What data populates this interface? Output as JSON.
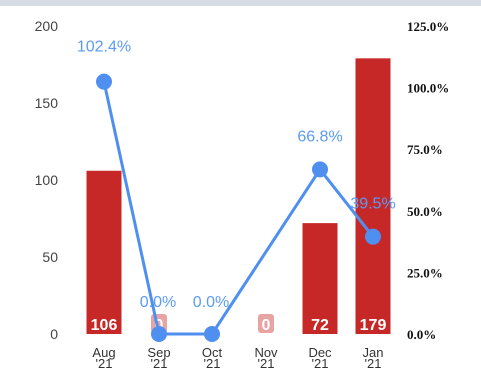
{
  "chart_data": {
    "type": "bar",
    "categories": [
      "Aug\n'21",
      "Sep\n'21",
      "Oct\n'21",
      "Nov\n'21",
      "Dec\n'21",
      "Jan\n'21"
    ],
    "series": [
      {
        "type": "bar",
        "axis": "left",
        "values": [
          106,
          0,
          0,
          0,
          72,
          179
        ],
        "data_labels": [
          "106",
          "0",
          "",
          "0",
          "72",
          "179"
        ]
      },
      {
        "type": "line",
        "axis": "right",
        "values": [
          102.4,
          0.0,
          0.0,
          null,
          66.8,
          39.5
        ],
        "data_labels": [
          "102.4%",
          "0.0%",
          "0.0%",
          "",
          "66.8%",
          "39.5%"
        ]
      }
    ],
    "y_left": {
      "range": [
        0,
        200
      ],
      "ticks": [
        0,
        50,
        100,
        150,
        200
      ],
      "tick_labels": [
        "0",
        "50",
        "100",
        "150",
        "200"
      ]
    },
    "y_right": {
      "range": [
        0,
        125
      ],
      "ticks": [
        0,
        25,
        50,
        75,
        100,
        125
      ],
      "tick_labels": [
        "0.0%",
        "25.0%",
        "50.0%",
        "75.0%",
        "100.0%",
        "125.0%"
      ]
    },
    "title": "",
    "xlabel": "",
    "ylabel": "",
    "grid": false,
    "legend": "none",
    "colors": {
      "bar": "#c62828",
      "line": "#4f8ff0",
      "line_label": "#5b9bf5",
      "bar_label": "#ffffff",
      "zero_label_bg": "#e8a3a3",
      "axis_text_left": "#444444",
      "axis_text_right": "#111111"
    }
  }
}
